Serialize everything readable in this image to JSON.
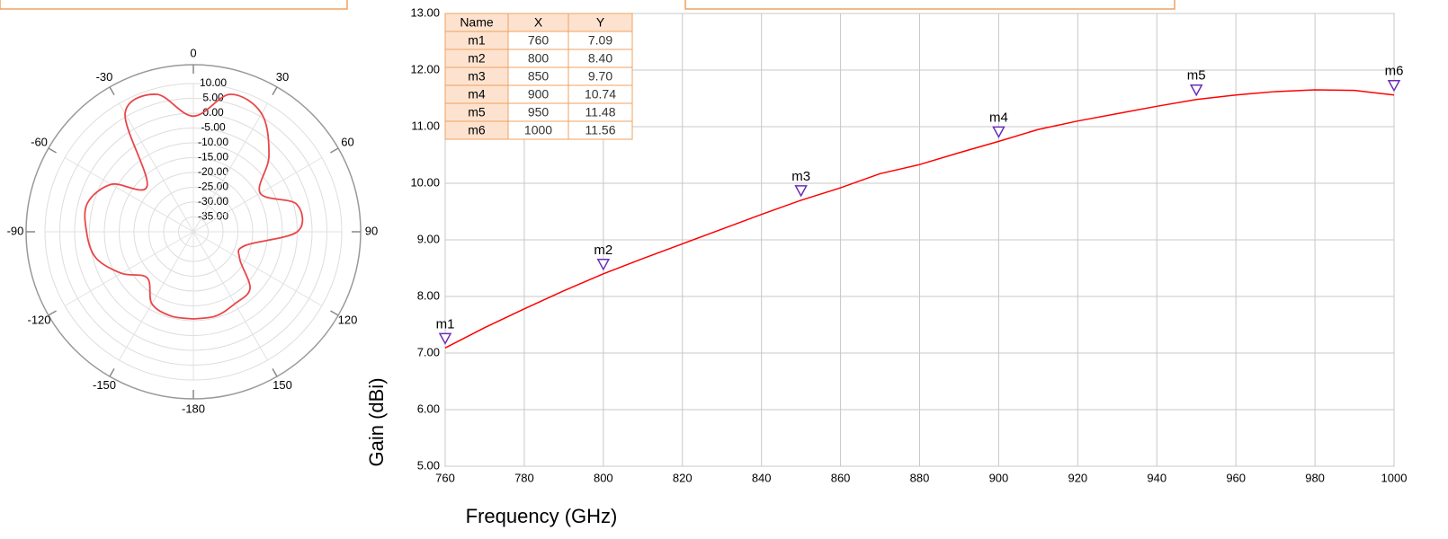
{
  "chart_data": [
    {
      "type": "polar",
      "theta": [
        -180,
        -165,
        -150,
        -135,
        -120,
        -105,
        -90,
        -75,
        -60,
        -45,
        -30,
        -15,
        0,
        15,
        30,
        45,
        60,
        75,
        90,
        105,
        120,
        135,
        150,
        165,
        180
      ],
      "values": [
        -10.6,
        -10.6,
        -12,
        -18,
        -12,
        -6,
        -4,
        -3,
        -8,
        -18,
        6,
        8,
        -1,
        8,
        6,
        -4,
        -14,
        -4,
        -5,
        -22,
        -22,
        -13,
        -12,
        -10.6,
        -10.6
      ],
      "color": "#e8474a",
      "rlim": [
        -40,
        10
      ],
      "rticks": [
        {
          "value": 10,
          "label": "10.00"
        },
        {
          "value": 5,
          "label": "5.00"
        },
        {
          "value": 0,
          "label": "0.00"
        },
        {
          "value": -5,
          "label": "-5.00"
        },
        {
          "value": -10,
          "label": "-10.00"
        },
        {
          "value": -15,
          "label": "-15.00"
        },
        {
          "value": -20,
          "label": "-20.00"
        },
        {
          "value": -25,
          "label": "-25.00"
        },
        {
          "value": -30,
          "label": "-30.00"
        },
        {
          "value": -35,
          "label": "-35.00"
        }
      ],
      "thetaticks": [
        0,
        30,
        60,
        90,
        120,
        150,
        -180,
        -150,
        -120,
        -90,
        -60,
        -30
      ],
      "grid": true
    },
    {
      "type": "line",
      "xlabel": "Frequency (GHz)",
      "ylabel": "Gain (dBi)",
      "x": [
        760,
        770,
        780,
        790,
        800,
        810,
        820,
        830,
        840,
        850,
        860,
        870,
        880,
        890,
        900,
        910,
        920,
        930,
        940,
        950,
        960,
        970,
        980,
        990,
        1000
      ],
      "values": [
        7.09,
        7.45,
        7.78,
        8.1,
        8.4,
        8.67,
        8.93,
        9.19,
        9.45,
        9.7,
        9.92,
        10.17,
        10.33,
        10.54,
        10.74,
        10.95,
        11.1,
        11.23,
        11.36,
        11.48,
        11.56,
        11.62,
        11.65,
        11.64,
        11.56
      ],
      "color": "#ff0000",
      "xlim": [
        760,
        1000
      ],
      "xticks": [
        760,
        780,
        800,
        820,
        840,
        860,
        880,
        900,
        920,
        940,
        960,
        980,
        1000
      ],
      "ylim": [
        5,
        13
      ],
      "yticks": [
        {
          "value": 5,
          "label": "5.00"
        },
        {
          "value": 6,
          "label": "6.00"
        },
        {
          "value": 7,
          "label": "7.00"
        },
        {
          "value": 8,
          "label": "8.00"
        },
        {
          "value": 9,
          "label": "9.00"
        },
        {
          "value": 10,
          "label": "10.00"
        },
        {
          "value": 11,
          "label": "11.00"
        },
        {
          "value": 12,
          "label": "12.00"
        },
        {
          "value": 13,
          "label": "13.00"
        }
      ],
      "grid": true,
      "markers": {
        "header": [
          "Name",
          "X",
          "Y"
        ],
        "names": [
          "m1",
          "m2",
          "m3",
          "m4",
          "m5",
          "m6"
        ],
        "x": [
          760,
          800,
          850,
          900,
          950,
          1000
        ],
        "values": [
          7.09,
          8.4,
          9.7,
          10.74,
          11.48,
          11.56
        ],
        "value_labels": [
          "7.09",
          "8.40",
          "9.70",
          "10.74",
          "11.48",
          "11.56"
        ],
        "color": "#6a2fb5"
      }
    }
  ]
}
